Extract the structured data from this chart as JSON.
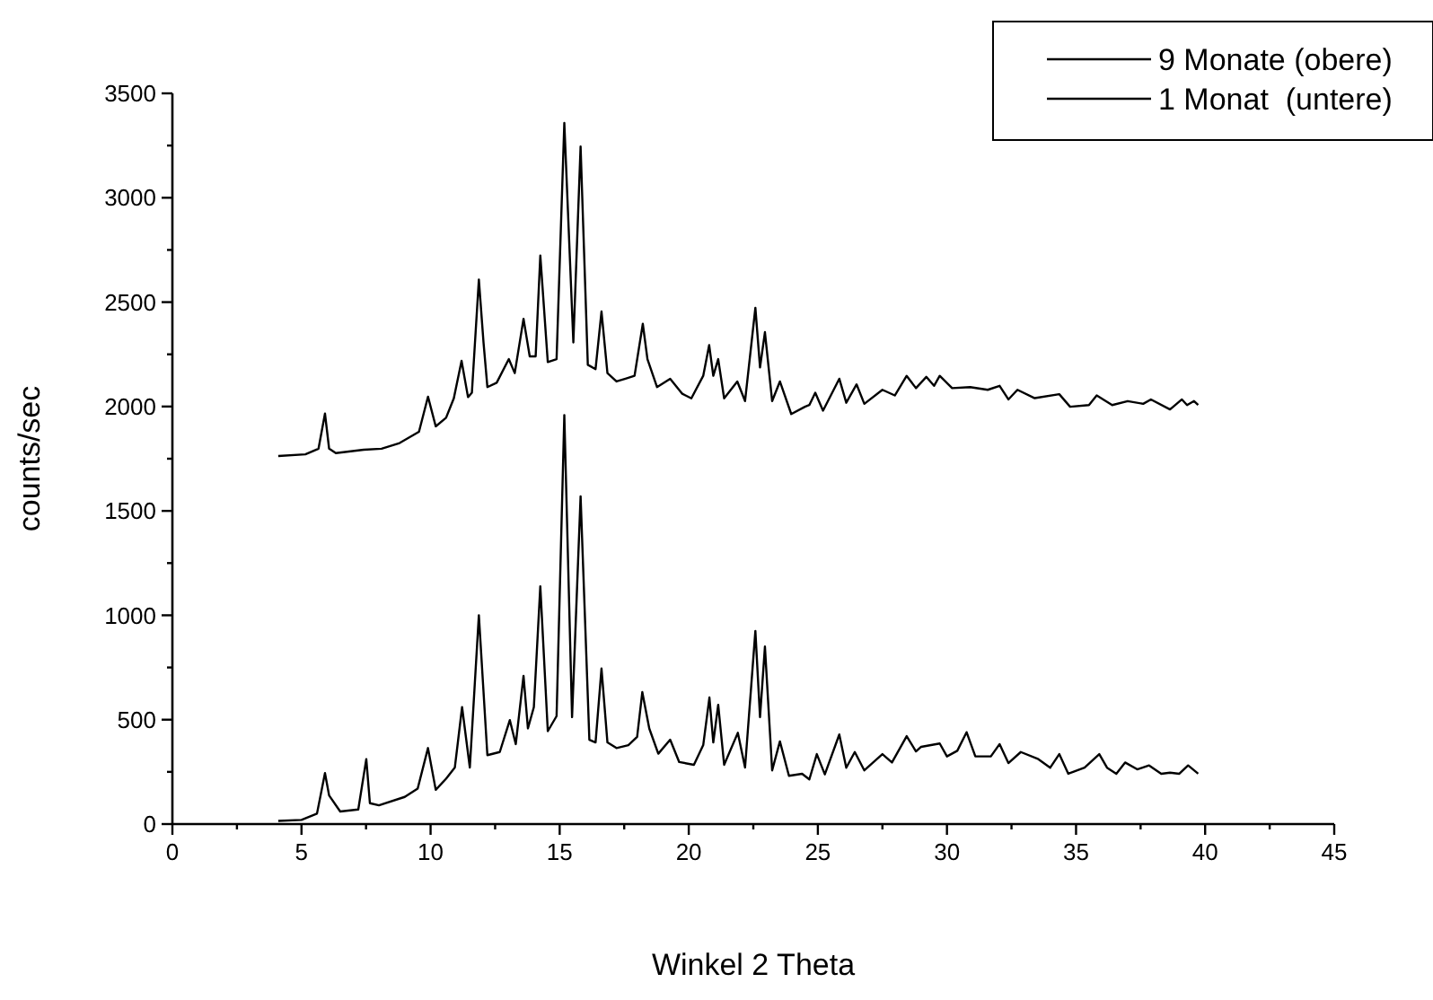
{
  "chart_data": {
    "type": "line",
    "xlabel": "Winkel 2 Theta",
    "ylabel": "counts/sec",
    "xlim": [
      0,
      45
    ],
    "ylim": [
      0,
      3500
    ],
    "xticks": [
      0,
      {
        "value": 2.5,
        "label": null
      },
      5,
      {
        "value": 7.5,
        "label": null
      },
      10,
      {
        "value": 12.5,
        "label": null
      },
      15,
      {
        "value": 17.5,
        "label": null
      },
      20,
      {
        "value": 22.5,
        "label": null
      },
      25,
      {
        "value": 27.5,
        "label": null
      },
      30,
      {
        "value": 32.5,
        "label": null
      },
      35,
      {
        "value": 37.5,
        "label": null
      },
      40,
      {
        "value": 42.5,
        "label": null
      },
      45
    ],
    "yticks": [
      0,
      {
        "value": 250,
        "label": null
      },
      500,
      {
        "value": 750,
        "label": null
      },
      1000,
      {
        "value": 1250,
        "label": null
      },
      1500,
      {
        "value": 1750,
        "label": null
      },
      2000,
      {
        "value": 2250,
        "label": null
      },
      2500,
      {
        "value": 2750,
        "label": null
      },
      3000,
      {
        "value": 3250,
        "label": null
      },
      3500
    ],
    "grid": false,
    "legend": "top right",
    "marker": "none",
    "line_style": "solid",
    "series": [
      {
        "name": "9 Monate (obere)",
        "color": "#000000",
        "x": [
          4.1,
          5.15,
          5.66,
          5.91,
          6.07,
          6.33,
          7.41,
          8.1,
          8.8,
          9.55,
          9.9,
          10.2,
          10.6,
          10.9,
          11.2,
          11.45,
          11.6,
          11.87,
          12.05,
          12.2,
          12.56,
          13.03,
          13.26,
          13.6,
          13.84,
          14.07,
          14.25,
          14.54,
          14.88,
          15.18,
          15.53,
          15.81,
          16.09,
          16.39,
          16.62,
          16.85,
          17.2,
          17.55,
          17.9,
          18.22,
          18.4,
          18.77,
          19.28,
          19.75,
          20.1,
          20.56,
          20.79,
          20.95,
          21.14,
          21.37,
          21.88,
          22.18,
          22.58,
          22.76,
          22.95,
          23.23,
          23.53,
          23.97,
          24.5,
          24.67,
          24.9,
          25.2,
          25.83,
          26.1,
          26.5,
          26.8,
          27.5,
          27.98,
          28.44,
          28.8,
          29.2,
          29.5,
          29.72,
          30.2,
          30.9,
          31.58,
          32.04,
          32.38,
          32.73,
          33.4,
          34.35,
          34.77,
          35.5,
          35.8,
          36.4,
          37.0,
          37.6,
          37.9,
          38.64,
          39.1,
          39.3,
          39.57,
          39.73
        ],
        "values": [
          1763,
          1771,
          1798,
          1966,
          1798,
          1777,
          1793,
          1798,
          1825,
          1879,
          2047,
          1905,
          1946,
          2039,
          2219,
          2045,
          2066,
          2608,
          2307,
          2093,
          2114,
          2227,
          2160,
          2420,
          2240,
          2240,
          2723,
          2213,
          2227,
          3358,
          2307,
          3245,
          2200,
          2179,
          2455,
          2160,
          2120,
          2133,
          2147,
          2396,
          2227,
          2093,
          2133,
          2061,
          2039,
          2147,
          2294,
          2147,
          2227,
          2039,
          2120,
          2026,
          2473,
          2187,
          2356,
          2026,
          2120,
          1964,
          1999,
          2007,
          2066,
          1980,
          2133,
          2018,
          2106,
          2013,
          2080,
          2053,
          2147,
          2088,
          2142,
          2099,
          2147,
          2088,
          2093,
          2080,
          2099,
          2034,
          2080,
          2040,
          2059,
          1999,
          2007,
          2053,
          2007,
          2026,
          2013,
          2034,
          1986,
          2034,
          2007,
          2026,
          2007
        ]
      },
      {
        "name": "1 Monat  (untere)",
        "color": "#000000",
        "x": [
          4.1,
          5.0,
          5.6,
          5.91,
          6.07,
          6.5,
          7.2,
          7.51,
          7.65,
          8.0,
          9.0,
          9.5,
          9.9,
          10.2,
          10.6,
          10.94,
          11.22,
          11.52,
          11.87,
          12.2,
          12.68,
          13.07,
          13.3,
          13.6,
          13.77,
          14.0,
          14.25,
          14.54,
          14.88,
          15.18,
          15.48,
          15.81,
          16.15,
          16.39,
          16.62,
          16.85,
          17.2,
          17.66,
          18.0,
          18.2,
          18.47,
          18.82,
          19.28,
          19.63,
          20.2,
          20.56,
          20.8,
          20.95,
          21.14,
          21.37,
          21.9,
          22.18,
          22.58,
          22.76,
          22.95,
          23.23,
          23.53,
          23.88,
          24.39,
          24.67,
          24.96,
          25.27,
          25.83,
          26.1,
          26.43,
          26.8,
          27.5,
          27.87,
          28.44,
          28.8,
          29.0,
          29.72,
          30.0,
          30.4,
          30.76,
          31.1,
          31.7,
          32.04,
          32.38,
          32.86,
          33.54,
          34.0,
          34.35,
          34.7,
          35.33,
          35.9,
          36.2,
          36.56,
          36.9,
          37.37,
          37.83,
          38.3,
          38.64,
          39.0,
          39.34,
          39.73
        ],
        "values": [
          15,
          20,
          50,
          244,
          137,
          60,
          70,
          311,
          100,
          90,
          130,
          170,
          364,
          164,
          217,
          271,
          560,
          271,
          1000,
          330,
          345,
          498,
          383,
          710,
          458,
          560,
          1139,
          445,
          517,
          1959,
          512,
          1570,
          404,
          391,
          745,
          391,
          364,
          378,
          418,
          632,
          458,
          337,
          404,
          297,
          284,
          378,
          606,
          391,
          571,
          284,
          437,
          271,
          925,
          512,
          850,
          257,
          396,
          231,
          241,
          214,
          335,
          238,
          429,
          270,
          345,
          257,
          335,
          295,
          421,
          348,
          370,
          386,
          324,
          351,
          440,
          324,
          324,
          383,
          292,
          345,
          311,
          270,
          335,
          241,
          270,
          335,
          270,
          241,
          295,
          262,
          281,
          241,
          246,
          241,
          281,
          241
        ]
      }
    ]
  }
}
